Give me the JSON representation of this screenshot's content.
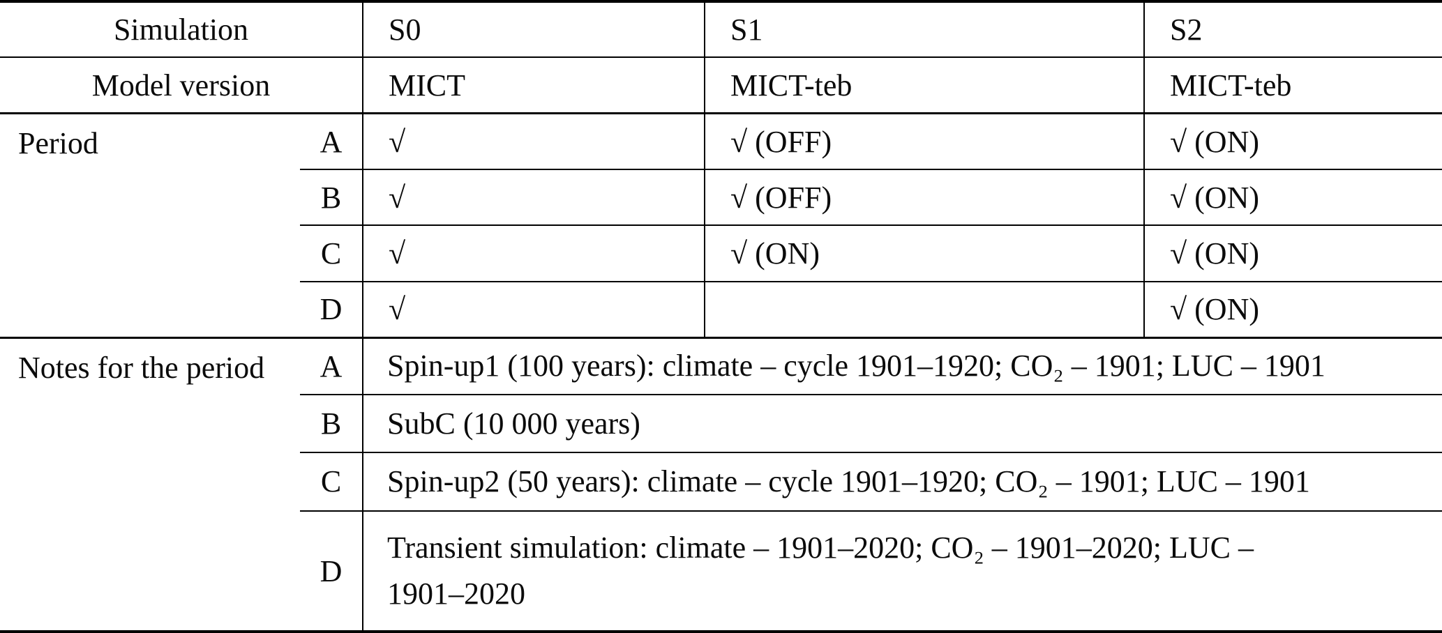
{
  "table": {
    "header": {
      "simulation_label": "Simulation",
      "model_version_label": "Model version",
      "columns": [
        "S0",
        "S1",
        "S2"
      ],
      "model_versions": [
        "MICT",
        "MICT-teb",
        "MICT-teb"
      ]
    },
    "period": {
      "label": "Period",
      "rows": [
        {
          "key": "A",
          "s0": "√",
          "s1": "√ (OFF)",
          "s2": "√ (ON)"
        },
        {
          "key": "B",
          "s0": "√",
          "s1": "√ (OFF)",
          "s2": "√ (ON)"
        },
        {
          "key": "C",
          "s0": "√",
          "s1": "√ (ON)",
          "s2": "√ (ON)"
        },
        {
          "key": "D",
          "s0": "√",
          "s1": "",
          "s2": "√ (ON)"
        }
      ]
    },
    "notes": {
      "label": "Notes for the period",
      "rows": [
        {
          "key": "A",
          "text": "Spin-up1 (100 years): climate – cycle 1901–1920; CO₂ – 1901; LUC – 1901"
        },
        {
          "key": "B",
          "text": "SubC (10 000 years)"
        },
        {
          "key": "C",
          "text": "Spin-up2 (50 years): climate – cycle 1901–1920; CO₂ – 1901; LUC – 1901"
        },
        {
          "key": "D",
          "text": "Transient simulation: climate – 1901–2020; CO₂ – 1901–2020; LUC –\n1901–2020"
        }
      ]
    }
  }
}
